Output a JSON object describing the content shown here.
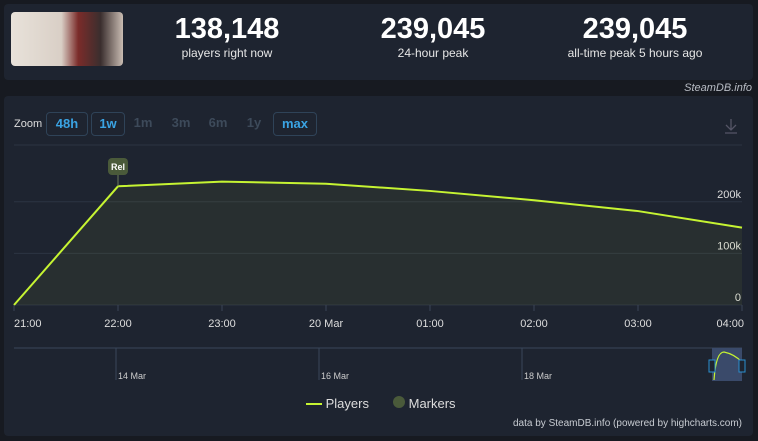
{
  "stats": [
    {
      "value": "138,148",
      "label": "players right now"
    },
    {
      "value": "239,045",
      "label": "24-hour peak"
    },
    {
      "value": "239,045",
      "label": "all-time peak 5 hours ago"
    }
  ],
  "credit_top": "SteamDB.info",
  "zoom": {
    "label": "Zoom",
    "buttons": [
      {
        "label": "48h",
        "active": true
      },
      {
        "label": "1w",
        "active": true
      },
      {
        "label": "1m",
        "active": false
      },
      {
        "label": "3m",
        "active": false
      },
      {
        "label": "6m",
        "active": false
      },
      {
        "label": "1y",
        "active": false
      },
      {
        "label": "max",
        "active": true
      }
    ]
  },
  "legend": {
    "players": "Players",
    "markers": "Markers"
  },
  "footer": "data by SteamDB.info (powered by highcharts.com)",
  "colors": {
    "line": "#c6f432",
    "marker": "#4a5a3a"
  },
  "chart_data": {
    "type": "line",
    "x": [
      "21:00",
      "22:00",
      "23:00",
      "20 Mar",
      "01:00",
      "02:00",
      "03:00",
      "04:00"
    ],
    "series": [
      {
        "name": "Players",
        "values": [
          0,
          230000,
          239045,
          235000,
          221000,
          203000,
          182000,
          150000
        ]
      }
    ],
    "yticks": [
      "0",
      "100k",
      "200k"
    ],
    "yrange": [
      0,
      310000
    ],
    "marker": {
      "label": "Rel",
      "at": "22:00"
    },
    "navigator_labels": [
      "14 Mar",
      "16 Mar",
      "18 Mar"
    ]
  }
}
